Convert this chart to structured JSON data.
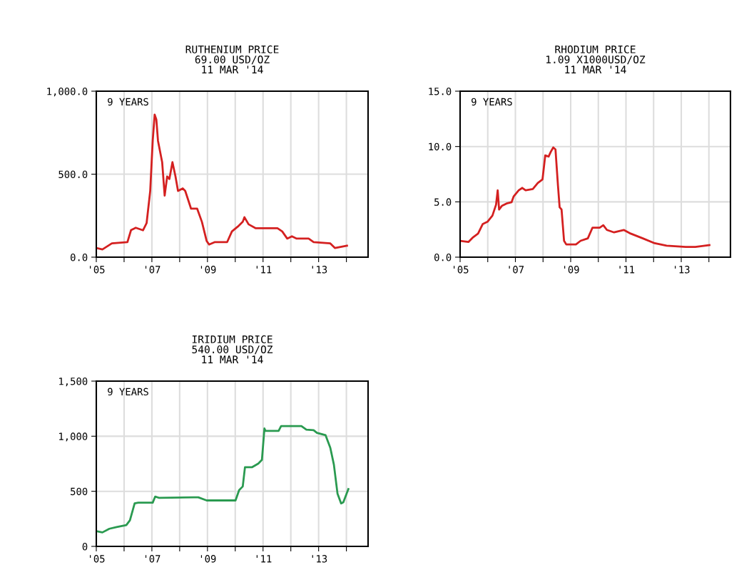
{
  "chart_data": [
    {
      "type": "line",
      "title": "RUTHENIUM PRICE",
      "subtitle": "69.00 USD/OZ\n11 MAR '14",
      "annotations": [
        "9 YEARS"
      ],
      "grid": true,
      "xlim": [
        2005,
        2014.78
      ],
      "xticks": [
        {
          "value": 2005,
          "label": "'05"
        },
        {
          "value": 2006,
          "label": null
        },
        {
          "value": 2007,
          "label": "'07"
        },
        {
          "value": 2008,
          "label": null
        },
        {
          "value": 2009,
          "label": "'09"
        },
        {
          "value": 2010,
          "label": null
        },
        {
          "value": 2011,
          "label": "'11"
        },
        {
          "value": 2012,
          "label": null
        },
        {
          "value": 2013,
          "label": "'13"
        },
        {
          "value": 2014,
          "label": null
        }
      ],
      "ylim": [
        0,
        1000
      ],
      "yticks": [
        {
          "value": 0,
          "label": "0.0"
        },
        {
          "value": 500,
          "label": "500.0"
        },
        {
          "value": 1000,
          "label": "1,000.0"
        }
      ],
      "series": [
        {
          "color": "#d42020",
          "x": [
            2005.0,
            2005.22,
            2005.56,
            2006.12,
            2006.25,
            2006.42,
            2006.68,
            2006.81,
            2006.94,
            2007.03,
            2007.1,
            2007.16,
            2007.22,
            2007.37,
            2007.46,
            2007.55,
            2007.63,
            2007.74,
            2007.85,
            2007.94,
            2008.11,
            2008.2,
            2008.41,
            2008.63,
            2008.8,
            2008.97,
            2009.06,
            2009.27,
            2009.71,
            2009.88,
            2010.09,
            2010.27,
            2010.33,
            2010.48,
            2010.74,
            2011.52,
            2011.69,
            2011.87,
            2012.04,
            2012.21,
            2012.64,
            2012.82,
            2013.42,
            2013.59,
            2014.02
          ],
          "values": [
            55,
            47,
            83,
            91,
            163,
            177,
            162,
            205,
            399,
            701,
            859,
            830,
            701,
            572,
            371,
            486,
            471,
            572,
            486,
            399,
            414,
            399,
            292,
            292,
            213,
            98,
            76,
            91,
            91,
            155,
            184,
            213,
            241,
            198,
            174,
            174,
            155,
            112,
            126,
            112,
            112,
            91,
            83,
            55,
            69
          ]
        }
      ]
    },
    {
      "type": "line",
      "title": "RHODIUM PRICE",
      "subtitle": "1.09 X1000USD/OZ\n11 MAR '14",
      "annotations": [
        "9 YEARS"
      ],
      "grid": true,
      "xlim": [
        2005,
        2014.78
      ],
      "xticks": [
        {
          "value": 2005,
          "label": "'05"
        },
        {
          "value": 2006,
          "label": null
        },
        {
          "value": 2007,
          "label": "'07"
        },
        {
          "value": 2008,
          "label": null
        },
        {
          "value": 2009,
          "label": "'09"
        },
        {
          "value": 2010,
          "label": null
        },
        {
          "value": 2011,
          "label": "'11"
        },
        {
          "value": 2012,
          "label": null
        },
        {
          "value": 2013,
          "label": "'13"
        },
        {
          "value": 2014,
          "label": null
        }
      ],
      "ylim": [
        0,
        15
      ],
      "yticks": [
        {
          "value": 0,
          "label": "0.0"
        },
        {
          "value": 5,
          "label": "5.0"
        },
        {
          "value": 10,
          "label": "10.0"
        },
        {
          "value": 15,
          "label": "15.0"
        }
      ],
      "series": [
        {
          "color": "#d42020",
          "x": [
            2005.0,
            2005.3,
            2005.47,
            2005.65,
            2005.82,
            2005.99,
            2006.17,
            2006.3,
            2006.36,
            2006.41,
            2006.51,
            2006.68,
            2006.86,
            2006.94,
            2007.12,
            2007.25,
            2007.37,
            2007.63,
            2007.81,
            2007.98,
            2008.08,
            2008.2,
            2008.28,
            2008.37,
            2008.45,
            2008.54,
            2008.6,
            2008.67,
            2008.76,
            2008.84,
            2009.19,
            2009.36,
            2009.62,
            2009.79,
            2010.05,
            2010.18,
            2010.31,
            2010.57,
            2010.92,
            2011.17,
            2011.61,
            2012.04,
            2012.47,
            2013.16,
            2013.51,
            2014.02
          ],
          "values": [
            1.48,
            1.37,
            1.8,
            2.13,
            3.0,
            3.2,
            3.76,
            4.74,
            6.04,
            4.3,
            4.63,
            4.85,
            4.96,
            5.5,
            6.04,
            6.26,
            6.04,
            6.15,
            6.7,
            7.02,
            9.2,
            9.09,
            9.52,
            9.91,
            9.74,
            6.48,
            4.52,
            4.3,
            1.48,
            1.15,
            1.15,
            1.48,
            1.7,
            2.67,
            2.67,
            2.89,
            2.46,
            2.24,
            2.46,
            2.13,
            1.7,
            1.26,
            1.04,
            0.93,
            0.93,
            1.09
          ]
        }
      ]
    },
    {
      "type": "line",
      "title": "IRIDIUM PRICE",
      "subtitle": "540.00 USD/OZ\n11 MAR '14",
      "annotations": [
        "9 YEARS"
      ],
      "grid": true,
      "xlim": [
        2005,
        2014.78
      ],
      "xticks": [
        {
          "value": 2005,
          "label": "'05"
        },
        {
          "value": 2006,
          "label": null
        },
        {
          "value": 2007,
          "label": "'07"
        },
        {
          "value": 2008,
          "label": null
        },
        {
          "value": 2009,
          "label": "'09"
        },
        {
          "value": 2010,
          "label": null
        },
        {
          "value": 2011,
          "label": "'11"
        },
        {
          "value": 2012,
          "label": null
        },
        {
          "value": 2013,
          "label": "'13"
        },
        {
          "value": 2014,
          "label": null
        }
      ],
      "ylim": [
        0,
        1500
      ],
      "yticks": [
        0,
        {
          "value": 500,
          "label": "500"
        },
        {
          "value": 1000,
          "label": "1,000"
        },
        {
          "value": 1500,
          "label": "1,500"
        }
      ],
      "series": [
        {
          "color": "#2a9a50",
          "x": [
            2005.0,
            2005.22,
            2005.47,
            2005.73,
            2006.08,
            2006.21,
            2006.38,
            2006.51,
            2007.03,
            2007.12,
            2007.25,
            2008.5,
            2008.67,
            2008.97,
            2010.01,
            2010.14,
            2010.27,
            2010.35,
            2010.61,
            2010.83,
            2010.96,
            2011.05,
            2011.09,
            2011.56,
            2011.65,
            2012.38,
            2012.56,
            2012.82,
            2012.94,
            2013.25,
            2013.42,
            2013.55,
            2013.68,
            2013.81,
            2013.89,
            2014.07
          ],
          "values": [
            138,
            127,
            160,
            175,
            193,
            237,
            390,
            397,
            397,
            452,
            441,
            445,
            445,
            417,
            417,
            511,
            544,
            719,
            719,
            752,
            785,
            1070,
            1048,
            1048,
            1092,
            1092,
            1059,
            1055,
            1031,
            1009,
            895,
            741,
            478,
            390,
            401,
            520
          ]
        }
      ]
    }
  ]
}
